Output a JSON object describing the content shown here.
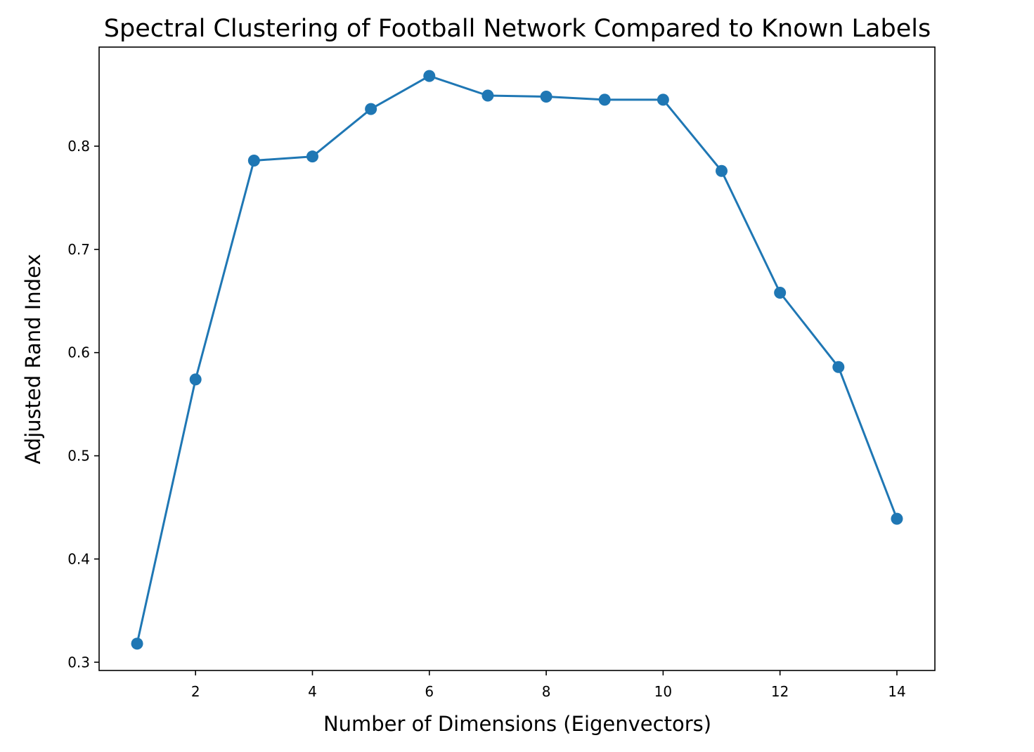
{
  "chart_data": {
    "type": "line",
    "title": "Spectral Clustering of Football Network Compared to Known Labels",
    "xlabel": "Number of Dimensions (Eigenvectors)",
    "ylabel": "Adjusted Rand Index",
    "xlim": [
      0.35,
      14.65
    ],
    "ylim": [
      0.292,
      0.896
    ],
    "xticks": [
      2,
      4,
      6,
      8,
      10,
      12,
      14
    ],
    "yticks": [
      0.3,
      0.4,
      0.5,
      0.6,
      0.7,
      0.8
    ],
    "ytick_labels": [
      "0.3",
      "0.4",
      "0.5",
      "0.6",
      "0.7",
      "0.8"
    ],
    "grid": false,
    "color": "#1f77b4",
    "marker": "circle",
    "series": [
      {
        "x": [
          1,
          2,
          3,
          4,
          5,
          6,
          7,
          8,
          9,
          10,
          11,
          12,
          13,
          14
        ],
        "values": [
          0.318,
          0.574,
          0.786,
          0.79,
          0.836,
          0.868,
          0.849,
          0.848,
          0.845,
          0.845,
          0.776,
          0.658,
          0.586,
          0.439
        ]
      }
    ]
  }
}
